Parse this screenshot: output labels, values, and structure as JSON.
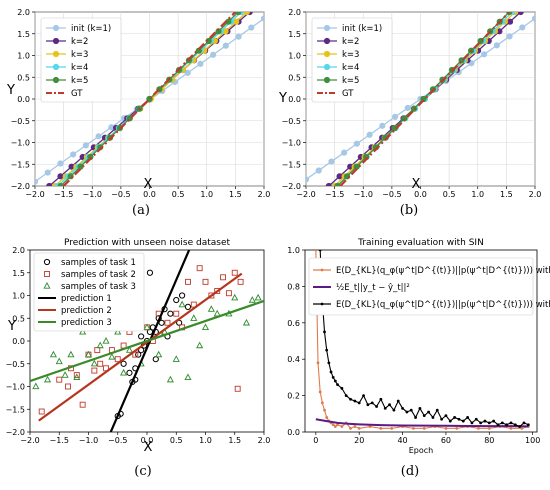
{
  "chart_data": [
    {
      "panel": "a",
      "type": "line",
      "caption": "(a)",
      "title": "",
      "xlabel": "X",
      "ylabel": "Y",
      "xlim": [
        -2.0,
        2.0
      ],
      "ylim": [
        -2.0,
        2.0
      ],
      "xticks": [
        "−2.0",
        "−1.5",
        "−1.0",
        "−0.5",
        "0.0",
        "0.5",
        "1.0",
        "1.5",
        "2.0"
      ],
      "yticks": [
        "−2.0",
        "−1.5",
        "−1.0",
        "−0.5",
        "0.0",
        "0.5",
        "1.0",
        "1.5",
        "2.0"
      ],
      "grid": true,
      "legend_position": "top-left",
      "series": [
        {
          "name": "init (k=1)",
          "color": "#a6c8e6",
          "marker": "circle",
          "dash": "solid",
          "x": [
            -2.0,
            2.0
          ],
          "y": [
            -1.9,
            1.85
          ]
        },
        {
          "name": "k=2",
          "color": "#5b2a86",
          "marker": "circle",
          "dash": "solid",
          "x": [
            -1.75,
            1.75
          ],
          "y": [
            -2.0,
            2.0
          ]
        },
        {
          "name": "k=3",
          "color": "#e8c21a",
          "marker": "circle",
          "dash": "solid",
          "x": [
            -1.65,
            1.7
          ],
          "y": [
            -2.0,
            2.0
          ]
        },
        {
          "name": "k=4",
          "color": "#56d8e8",
          "marker": "circle",
          "dash": "solid",
          "x": [
            -1.6,
            1.6
          ],
          "y": [
            -2.0,
            2.0
          ]
        },
        {
          "name": "k=5",
          "color": "#3f8f3f",
          "marker": "circle",
          "dash": "solid",
          "x": [
            -1.55,
            1.55
          ],
          "y": [
            -2.0,
            2.0
          ]
        },
        {
          "name": "GT",
          "color": "#c0392b",
          "marker": "none",
          "dash": "dashdot",
          "x": [
            -1.5,
            1.5
          ],
          "y": [
            -2.0,
            2.0
          ]
        }
      ]
    },
    {
      "panel": "b",
      "type": "line",
      "caption": "(b)",
      "title": "",
      "xlabel": "X",
      "ylabel": "Y",
      "xlim": [
        -2.0,
        2.0
      ],
      "ylim": [
        -2.0,
        2.0
      ],
      "xticks": [
        "−2.0",
        "−1.5",
        "−1.0",
        "−0.5",
        "0.0",
        "0.5",
        "1.0",
        "1.5",
        "2.0"
      ],
      "yticks": [
        "−2.0",
        "−1.5",
        "−1.0",
        "−0.5",
        "0.0",
        "0.5",
        "1.0",
        "1.5",
        "2.0"
      ],
      "grid": true,
      "legend_position": "top-left",
      "series": [
        {
          "name": "init (k=1)",
          "color": "#a6c8e6",
          "marker": "circle",
          "dash": "solid",
          "x": [
            -2.0,
            2.0
          ],
          "y": [
            -1.85,
            1.85
          ]
        },
        {
          "name": "k=2",
          "color": "#5b2a86",
          "marker": "circle",
          "dash": "solid",
          "x": [
            -1.6,
            1.75
          ],
          "y": [
            -2.0,
            2.0
          ]
        },
        {
          "name": "k=3",
          "color": "#e8c21a",
          "marker": "circle",
          "dash": "solid",
          "x": [
            -1.5,
            1.65
          ],
          "y": [
            -2.0,
            2.0
          ]
        },
        {
          "name": "k=4",
          "color": "#56d8e8",
          "marker": "circle",
          "dash": "solid",
          "x": [
            -1.45,
            1.6
          ],
          "y": [
            -2.0,
            2.0
          ]
        },
        {
          "name": "k=5",
          "color": "#3f8f3f",
          "marker": "circle",
          "dash": "solid",
          "x": [
            -1.45,
            1.55
          ],
          "y": [
            -2.0,
            2.0
          ]
        },
        {
          "name": "GT",
          "color": "#c0392b",
          "marker": "none",
          "dash": "dashdot",
          "x": [
            -1.4,
            1.55
          ],
          "y": [
            -2.0,
            2.0
          ]
        }
      ]
    },
    {
      "panel": "c",
      "type": "scatter",
      "caption": "(c)",
      "title": "Prediction with unseen noise dataset",
      "xlabel": "X",
      "ylabel": "Y",
      "xlim": [
        -2.0,
        2.0
      ],
      "ylim": [
        -2.0,
        2.0
      ],
      "xticks": [
        "−2.0",
        "−1.5",
        "−1.0",
        "−0.5",
        "0.0",
        "0.5",
        "1.0",
        "1.5",
        "2.0"
      ],
      "yticks": [
        "−2.0",
        "−1.5",
        "−1.0",
        "−0.5",
        "0.0",
        "0.5",
        "1.0",
        "1.5",
        "2.0"
      ],
      "grid": false,
      "legend_position": "top-left",
      "scatter_series": [
        {
          "name": "samples of task 1",
          "color": "#000000",
          "marker": "circle",
          "points": [
            [
              -0.5,
              -1.65
            ],
            [
              -0.45,
              -1.6
            ],
            [
              -0.3,
              -0.7
            ],
            [
              -0.25,
              -0.9
            ],
            [
              -0.2,
              -0.6
            ],
            [
              -0.15,
              -0.3
            ],
            [
              -0.1,
              -0.2
            ],
            [
              -0.1,
              0.1
            ],
            [
              -0.05,
              -0.1
            ],
            [
              0.0,
              0.0
            ],
            [
              0.05,
              0.2
            ],
            [
              0.1,
              0.3
            ],
            [
              0.15,
              0.2
            ],
            [
              0.2,
              0.5
            ],
            [
              0.25,
              0.4
            ],
            [
              0.3,
              0.7
            ],
            [
              0.35,
              0.1
            ],
            [
              0.4,
              0.6
            ],
            [
              0.5,
              0.9
            ],
            [
              0.55,
              0.4
            ],
            [
              0.6,
              1.0
            ],
            [
              0.7,
              0.75
            ],
            [
              -0.4,
              -0.5
            ],
            [
              -0.35,
              0.35
            ],
            [
              0.05,
              1.5
            ],
            [
              -0.2,
              -0.85
            ],
            [
              0.15,
              -0.4
            ]
          ]
        },
        {
          "name": "samples of task 2",
          "color": "#c0392b",
          "marker": "square",
          "points": [
            [
              -1.8,
              -1.55
            ],
            [
              -1.5,
              -0.85
            ],
            [
              -1.35,
              -1.0
            ],
            [
              -1.3,
              -0.6
            ],
            [
              -1.2,
              -0.75
            ],
            [
              -1.1,
              -1.4
            ],
            [
              -1.0,
              -0.3
            ],
            [
              -0.9,
              -0.65
            ],
            [
              -0.85,
              -0.2
            ],
            [
              -0.8,
              -0.5
            ],
            [
              -0.7,
              -0.6
            ],
            [
              -0.6,
              -0.2
            ],
            [
              -0.5,
              -0.4
            ],
            [
              -0.4,
              -0.1
            ],
            [
              -0.3,
              0.2
            ],
            [
              -0.2,
              -0.3
            ],
            [
              0.0,
              0.3
            ],
            [
              0.1,
              0.0
            ],
            [
              0.2,
              0.6
            ],
            [
              0.35,
              0.4
            ],
            [
              0.5,
              0.6
            ],
            [
              0.6,
              0.3
            ],
            [
              0.7,
              1.3
            ],
            [
              0.8,
              0.8
            ],
            [
              0.9,
              1.6
            ],
            [
              1.0,
              1.3
            ],
            [
              1.1,
              1.0
            ],
            [
              1.2,
              1.1
            ],
            [
              1.3,
              1.4
            ],
            [
              1.4,
              1.05
            ],
            [
              1.5,
              1.5
            ],
            [
              1.6,
              1.3
            ],
            [
              1.55,
              -1.05
            ]
          ]
        },
        {
          "name": "samples of task 3",
          "color": "#2e8b2e",
          "marker": "triangle",
          "points": [
            [
              -1.9,
              -1.0
            ],
            [
              -1.7,
              -0.85
            ],
            [
              -1.5,
              -0.45
            ],
            [
              -1.4,
              -0.75
            ],
            [
              -1.3,
              -0.3
            ],
            [
              -1.2,
              -0.8
            ],
            [
              -1.1,
              0.2
            ],
            [
              -1.0,
              -0.3
            ],
            [
              -0.9,
              -0.5
            ],
            [
              -0.8,
              -0.1
            ],
            [
              -0.7,
              0.0
            ],
            [
              -0.6,
              -0.35
            ],
            [
              -0.5,
              0.2
            ],
            [
              -0.4,
              -0.7
            ],
            [
              -0.3,
              -0.2
            ],
            [
              -0.2,
              0.4
            ],
            [
              -0.1,
              -0.5
            ],
            [
              0.0,
              0.3
            ],
            [
              0.2,
              -0.3
            ],
            [
              0.3,
              0.2
            ],
            [
              0.5,
              -0.4
            ],
            [
              0.6,
              0.8
            ],
            [
              0.7,
              -0.8
            ],
            [
              0.8,
              0.5
            ],
            [
              0.9,
              -0.1
            ],
            [
              1.0,
              0.3
            ],
            [
              1.1,
              0.7
            ],
            [
              1.2,
              0.6
            ],
            [
              1.4,
              0.6
            ],
            [
              1.5,
              0.95
            ],
            [
              1.7,
              0.4
            ],
            [
              1.8,
              0.9
            ],
            [
              1.9,
              0.95
            ],
            [
              0.4,
              -0.85
            ],
            [
              -1.6,
              -0.3
            ],
            [
              -0.95,
              0.6
            ]
          ]
        }
      ],
      "line_series": [
        {
          "name": "prediction 1",
          "color": "#000000",
          "x": [
            -0.62,
            0.72
          ],
          "y": [
            -2.0,
            2.0
          ]
        },
        {
          "name": "prediction 2",
          "color": "#b5361e",
          "x": [
            -1.85,
            1.62
          ],
          "y": [
            -1.75,
            1.48
          ]
        },
        {
          "name": "prediction 3",
          "color": "#3a8a2a",
          "x": [
            -2.0,
            2.0
          ],
          "y": [
            -0.88,
            0.88
          ]
        }
      ]
    },
    {
      "panel": "d",
      "type": "line",
      "caption": "(d)",
      "title": "Training evaluation with SIN",
      "xlabel": "Epoch",
      "ylabel": "",
      "xlim": [
        -5,
        102
      ],
      "ylim": [
        0.0,
        1.0
      ],
      "xticks": [
        "0",
        "20",
        "40",
        "60",
        "80",
        "100"
      ],
      "yticks": [
        "0.0",
        "0.2",
        "0.4",
        "0.6",
        "0.8",
        "1.0"
      ],
      "grid": false,
      "legend_position": "upper-right",
      "series": [
        {
          "name": "E(D_KL(q_φ(ψ^t|D^(t))||p(ψ^t|D^(t)))) with SIN",
          "color": "#e07a4a",
          "marker": "dot",
          "x": [
            0,
            1,
            2,
            3,
            4,
            5,
            6,
            7,
            8,
            9,
            10,
            12,
            14,
            16,
            18,
            20,
            25,
            30,
            35,
            40,
            45,
            50,
            55,
            60,
            65,
            70,
            75,
            80,
            85,
            90,
            95,
            98
          ],
          "y": [
            1.0,
            0.38,
            0.22,
            0.16,
            0.12,
            0.08,
            0.06,
            0.05,
            0.04,
            0.03,
            0.04,
            0.03,
            0.05,
            0.02,
            0.03,
            0.02,
            0.03,
            0.02,
            0.02,
            0.03,
            0.02,
            0.02,
            0.03,
            0.02,
            0.02,
            0.03,
            0.02,
            0.02,
            0.03,
            0.02,
            0.02,
            0.03
          ]
        },
        {
          "name": "½E_t||y_t − ŷ_t||²",
          "color": "#5b1a86",
          "marker": "none",
          "x": [
            0,
            5,
            10,
            15,
            20,
            30,
            40,
            50,
            60,
            70,
            80,
            90,
            98
          ],
          "y": [
            0.07,
            0.06,
            0.05,
            0.045,
            0.042,
            0.038,
            0.036,
            0.035,
            0.034,
            0.033,
            0.032,
            0.032,
            0.031
          ]
        },
        {
          "name": "E(D_KL(q_φ(ψ^t|D^(t))||p(ψ^t|D^(t)))) without SIN",
          "color": "#000000",
          "marker": "dot",
          "x": [
            2,
            3,
            4,
            5,
            6,
            7,
            8,
            9,
            10,
            12,
            14,
            16,
            18,
            20,
            22,
            24,
            26,
            28,
            30,
            32,
            34,
            36,
            38,
            40,
            42,
            44,
            46,
            48,
            50,
            52,
            54,
            56,
            58,
            60,
            62,
            64,
            66,
            68,
            70,
            72,
            74,
            76,
            78,
            80,
            82,
            84,
            86,
            88,
            90,
            92,
            94,
            96,
            98
          ],
          "y": [
            1.0,
            0.72,
            0.55,
            0.45,
            0.38,
            0.33,
            0.3,
            0.28,
            0.26,
            0.24,
            0.2,
            0.18,
            0.17,
            0.16,
            0.2,
            0.15,
            0.16,
            0.14,
            0.18,
            0.13,
            0.15,
            0.12,
            0.17,
            0.13,
            0.11,
            0.12,
            0.08,
            0.13,
            0.09,
            0.11,
            0.08,
            0.12,
            0.07,
            0.09,
            0.06,
            0.08,
            0.07,
            0.06,
            0.08,
            0.05,
            0.07,
            0.05,
            0.06,
            0.05,
            0.06,
            0.04,
            0.05,
            0.04,
            0.05,
            0.04,
            0.03,
            0.05,
            0.04
          ]
        }
      ],
      "legend_labels": [
        "E(D_{KL}(q_φ(ψ^t|D^{(t)})||p(ψ^t|D^{(t)}))) with SIN",
        "½E_t||y_t − ŷ_t||²",
        "E(D_{KL}(q_φ(ψ^t|D^{(t)})||p(ψ^t|D^{(t)}))) without SIN"
      ]
    }
  ]
}
